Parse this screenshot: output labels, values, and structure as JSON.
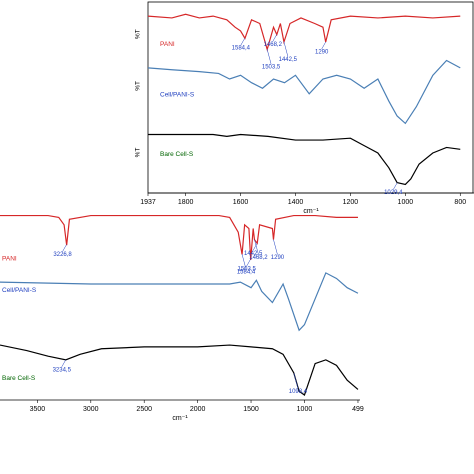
{
  "chart_data": [
    {
      "type": "line",
      "xlabel": "cm⁻¹",
      "ylabel": "%T",
      "xlim": [
        1937,
        750
      ],
      "ylim": [
        0,
        100
      ],
      "xticks": [
        1937,
        1800,
        1600,
        1400,
        1200,
        1000,
        800
      ],
      "series": [
        {
          "name": "PANI",
          "color": "#d62728",
          "label_color": "#d62728",
          "x": [
            1937,
            1850,
            1800,
            1750,
            1700,
            1650,
            1620,
            1600,
            1584,
            1560,
            1530,
            1503,
            1480,
            1468,
            1455,
            1442,
            1420,
            1380,
            1330,
            1300,
            1290,
            1270,
            1200,
            1100,
            1000,
            900,
            800
          ],
          "values": [
            94,
            93,
            95,
            93,
            94,
            92,
            88,
            86,
            82,
            92,
            90,
            76,
            88,
            84,
            90,
            80,
            90,
            93,
            90,
            88,
            80,
            92,
            94,
            93,
            94,
            93,
            94
          ],
          "annotations": [
            {
              "text": "1584,4",
              "x": 1584.4
            },
            {
              "text": "1503,5",
              "x": 1503.5
            },
            {
              "text": "1468,2",
              "x": 1468.2
            },
            {
              "text": "1442,5",
              "x": 1442.5
            },
            {
              "text": "1290",
              "x": 1290
            }
          ]
        },
        {
          "name": "Cell/PANI-S",
          "color": "#4a7fb5",
          "label_color": "#1f3fbf",
          "x": [
            1937,
            1850,
            1750,
            1680,
            1640,
            1600,
            1560,
            1520,
            1480,
            1440,
            1400,
            1350,
            1300,
            1250,
            1200,
            1150,
            1100,
            1060,
            1030,
            1000,
            960,
            900,
            850,
            800
          ],
          "values": [
            66,
            65,
            64,
            63,
            60,
            62,
            58,
            55,
            60,
            58,
            62,
            52,
            60,
            62,
            60,
            55,
            60,
            48,
            40,
            36,
            45,
            62,
            70,
            66
          ]
        },
        {
          "name": "Bare Cell-S",
          "color": "#000000",
          "label_color": "#006400",
          "x": [
            1937,
            1800,
            1700,
            1650,
            1600,
            1500,
            1400,
            1300,
            1200,
            1150,
            1100,
            1060,
            1030,
            1000,
            980,
            950,
            900,
            850,
            800
          ],
          "values": [
            30,
            30,
            30,
            29,
            30,
            29,
            27,
            27,
            28,
            24,
            20,
            12,
            4,
            3,
            6,
            14,
            20,
            23,
            22
          ],
          "annotations": [
            {
              "text": "1029,4",
              "x": 1029.4
            }
          ]
        }
      ]
    },
    {
      "type": "line",
      "xlabel": "cm⁻¹",
      "xlim": [
        3850,
        480
      ],
      "ylim": [
        0,
        100
      ],
      "xticks": [
        3500,
        3000,
        2500,
        2000,
        1500,
        1000,
        499
      ],
      "series": [
        {
          "name": "PANI",
          "color": "#d62728",
          "label_color": "#d62728",
          "x": [
            3850,
            3600,
            3400,
            3300,
            3250,
            3226,
            3200,
            3000,
            2500,
            2000,
            1800,
            1700,
            1620,
            1584,
            1560,
            1520,
            1503,
            1480,
            1468,
            1442,
            1420,
            1300,
            1290,
            1270,
            1100,
            900,
            700,
            499
          ],
          "values": [
            97,
            97,
            97,
            96,
            92,
            81,
            95,
            97,
            97,
            97,
            97,
            96,
            88,
            76,
            92,
            90,
            73,
            90,
            84,
            82,
            92,
            90,
            84,
            95,
            97,
            97,
            96,
            96
          ],
          "annotations": [
            {
              "text": "3226,8",
              "x": 3226.8
            },
            {
              "text": "1584,4",
              "x": 1584.4
            },
            {
              "text": "1503,5",
              "x": 1503.5
            },
            {
              "text": "1468,2",
              "x": 1468.2
            },
            {
              "text": "1442,5",
              "x": 1442.5
            },
            {
              "text": "1290",
              "x": 1290
            }
          ]
        },
        {
          "name": "Cell/PANI-S",
          "color": "#4a7fb5",
          "label_color": "#1f3fbf",
          "x": [
            3850,
            3000,
            2500,
            2000,
            1700,
            1600,
            1500,
            1450,
            1400,
            1300,
            1200,
            1150,
            1050,
            1000,
            900,
            800,
            700,
            600,
            499
          ],
          "values": [
            61,
            60,
            60,
            60,
            60,
            61,
            58,
            62,
            56,
            50,
            60,
            52,
            35,
            38,
            52,
            66,
            63,
            58,
            55
          ]
        },
        {
          "name": "Bare Cell-S",
          "color": "#000000",
          "label_color": "#006400",
          "x": [
            3850,
            3600,
            3400,
            3234,
            3100,
            2900,
            2500,
            2000,
            1700,
            1500,
            1300,
            1200,
            1100,
            1050,
            1000,
            900,
            800,
            700,
            600,
            499
          ],
          "values": [
            27,
            24,
            21,
            19,
            22,
            25,
            26,
            26,
            27,
            26,
            25,
            22,
            12,
            2,
            0,
            17,
            19,
            16,
            8,
            3
          ],
          "annotations": [
            {
              "text": "3234,5",
              "x": 3234.5
            },
            {
              "text": "1098,4",
              "x": 1098.4
            }
          ]
        }
      ]
    }
  ]
}
